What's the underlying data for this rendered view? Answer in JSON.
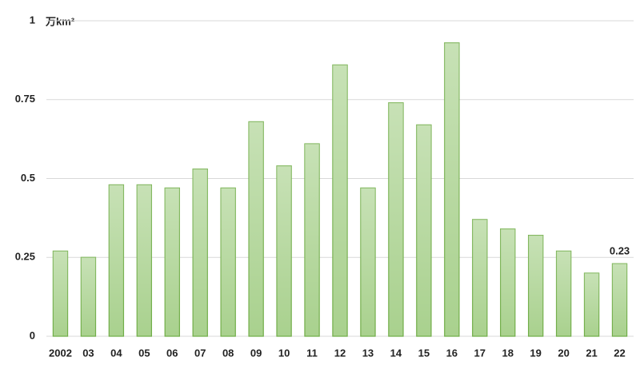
{
  "chart_data": {
    "type": "bar",
    "unit_label": "万km²",
    "categories": [
      "2002",
      "03",
      "04",
      "05",
      "06",
      "07",
      "08",
      "09",
      "10",
      "11",
      "12",
      "13",
      "14",
      "15",
      "16",
      "17",
      "18",
      "19",
      "20",
      "21",
      "22"
    ],
    "values": [
      0.27,
      0.25,
      0.48,
      0.48,
      0.47,
      0.53,
      0.47,
      0.68,
      0.54,
      0.61,
      0.86,
      0.47,
      0.74,
      0.67,
      0.93,
      0.37,
      0.34,
      0.32,
      0.27,
      0.2,
      0.23
    ],
    "value_labels": [
      null,
      null,
      null,
      null,
      null,
      null,
      null,
      null,
      null,
      null,
      null,
      null,
      null,
      null,
      null,
      null,
      null,
      null,
      null,
      null,
      "0.23"
    ],
    "color": "#a9d18e",
    "edge_color": "#70ad47",
    "ylim": [
      0,
      1
    ],
    "yticks": [
      0,
      0.25,
      0.5,
      0.75,
      1
    ],
    "grid": true
  }
}
